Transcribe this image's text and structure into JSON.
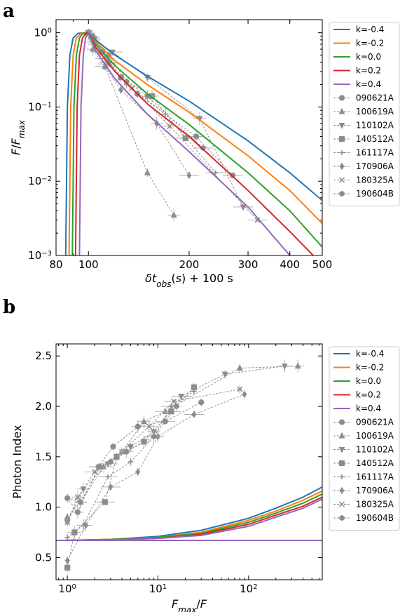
{
  "figure": {
    "panel_a_label": "a",
    "panel_b_label": "b"
  },
  "legend": {
    "models": [
      {
        "label": "k=-0.4",
        "color": "#1f77b4"
      },
      {
        "label": "k=-0.2",
        "color": "#ff7f0e"
      },
      {
        "label": "k=0.0",
        "color": "#2ca02c"
      },
      {
        "label": "k=0.2",
        "color": "#d62728"
      },
      {
        "label": "k=0.4",
        "color": "#9467bd"
      }
    ],
    "grbs": [
      {
        "label": "090621A",
        "marker": "circle"
      },
      {
        "label": "100619A",
        "marker": "triangle-up"
      },
      {
        "label": "110102A",
        "marker": "triangle-down"
      },
      {
        "label": "140512A",
        "marker": "square"
      },
      {
        "label": "161117A",
        "marker": "plus"
      },
      {
        "label": "170906A",
        "marker": "diamond"
      },
      {
        "label": "180325A",
        "marker": "x"
      },
      {
        "label": "190604B",
        "marker": "hexagon"
      }
    ]
  },
  "chart_data": [
    {
      "type": "line",
      "panel": "a",
      "xlabel": "δt_obs(s) + 100 s",
      "ylabel": "F/F_max",
      "xscale": "log",
      "yscale": "log",
      "xlim": [
        80,
        500
      ],
      "ylim": [
        0.001,
        1.5
      ],
      "xticks": [
        {
          "value": 80,
          "label": "80"
        },
        {
          "value": 100,
          "label": "100"
        },
        {
          "value": 200,
          "label": "200"
        },
        {
          "value": 300,
          "label": "300"
        },
        {
          "value": 400,
          "label": "400"
        },
        {
          "value": 500,
          "label": "500"
        }
      ],
      "yticks": [
        {
          "value": 1,
          "label": "10^0"
        },
        {
          "value": 0.1,
          "label": "10^-1"
        },
        {
          "value": 0.01,
          "label": "10^-2"
        },
        {
          "value": 0.001,
          "label": "10^-3"
        }
      ],
      "model_series": [
        {
          "name": "k=-0.4",
          "x": [
            85.5,
            86.5,
            88,
            90,
            93,
            97,
            100,
            105,
            120,
            150,
            200,
            300,
            400,
            500
          ],
          "y": [
            0.001,
            0.1,
            0.5,
            0.85,
            0.98,
            1.0,
            0.97,
            0.8,
            0.5,
            0.26,
            0.12,
            0.035,
            0.013,
            0.0055
          ]
        },
        {
          "name": "k=-0.2",
          "x": [
            87.5,
            88.5,
            90,
            92,
            95,
            98,
            100,
            105,
            120,
            150,
            200,
            300,
            400,
            500
          ],
          "y": [
            0.001,
            0.1,
            0.5,
            0.85,
            0.98,
            1.0,
            0.97,
            0.75,
            0.42,
            0.2,
            0.085,
            0.022,
            0.0075,
            0.0027
          ]
        },
        {
          "name": "k=0.0",
          "x": [
            89.5,
            90.5,
            92,
            94,
            96,
            99,
            100,
            105,
            120,
            150,
            200,
            300,
            400,
            500
          ],
          "y": [
            0.001,
            0.1,
            0.5,
            0.85,
            0.97,
            1.0,
            0.99,
            0.7,
            0.36,
            0.15,
            0.058,
            0.013,
            0.004,
            0.0013
          ]
        },
        {
          "name": "k=0.2",
          "x": [
            91.5,
            92.5,
            94,
            96,
            98,
            100,
            105,
            120,
            150,
            200,
            300,
            400,
            470
          ],
          "y": [
            0.001,
            0.1,
            0.5,
            0.85,
            0.97,
            1.0,
            0.64,
            0.3,
            0.11,
            0.04,
            0.0075,
            0.0021,
            0.001
          ]
        },
        {
          "name": "k=0.4",
          "x": [
            94,
            95,
            96.5,
            98,
            100,
            105,
            120,
            150,
            200,
            300,
            400
          ],
          "y": [
            0.001,
            0.1,
            0.5,
            0.85,
            1.0,
            0.58,
            0.24,
            0.08,
            0.025,
            0.0045,
            0.001
          ]
        }
      ],
      "data_series": [
        {
          "name": "090621A",
          "marker": "circle",
          "x": [
            100,
            104,
            115,
            140,
            210,
            270
          ],
          "y": [
            1.0,
            0.85,
            0.4,
            0.15,
            0.04,
            0.012
          ]
        },
        {
          "name": "100619A",
          "marker": "triangle-up",
          "x": [
            100,
            103,
            112,
            150,
            180
          ],
          "y": [
            1.0,
            0.6,
            0.35,
            0.013,
            0.0035
          ]
        },
        {
          "name": "110102A",
          "marker": "triangle-down",
          "x": [
            100,
            105,
            118,
            150,
            215,
            290
          ],
          "y": [
            1.0,
            0.7,
            0.55,
            0.25,
            0.07,
            0.0045
          ]
        },
        {
          "name": "140512A",
          "marker": "square",
          "x": [
            100,
            102,
            110,
            125,
            155,
            195
          ],
          "y": [
            1.0,
            0.9,
            0.55,
            0.25,
            0.14,
            0.038
          ]
        },
        {
          "name": "161117A",
          "marker": "plus",
          "x": [
            100,
            103,
            112,
            130,
            170,
            240
          ],
          "y": [
            1.0,
            0.75,
            0.45,
            0.2,
            0.08,
            0.013
          ]
        },
        {
          "name": "170906A",
          "marker": "diamond",
          "x": [
            100,
            104,
            112,
            125,
            160,
            200
          ],
          "y": [
            1.0,
            0.7,
            0.35,
            0.17,
            0.06,
            0.012
          ]
        },
        {
          "name": "180325A",
          "marker": "x",
          "x": [
            100,
            104,
            114,
            135,
            175,
            320
          ],
          "y": [
            1.0,
            0.8,
            0.38,
            0.18,
            0.055,
            0.003
          ]
        },
        {
          "name": "190604B",
          "marker": "hexagon",
          "x": [
            100,
            103,
            115,
            130,
            150,
            220
          ],
          "y": [
            1.0,
            0.9,
            0.5,
            0.22,
            0.14,
            0.028
          ]
        }
      ]
    },
    {
      "type": "line",
      "panel": "b",
      "xlabel": "F_max/F",
      "ylabel": "Photon Index",
      "xscale": "log",
      "yscale": "linear",
      "xlim": [
        0.75,
        650
      ],
      "ylim": [
        0.28,
        2.62
      ],
      "xticks": [
        {
          "value": 1,
          "label": "10^0"
        },
        {
          "value": 10,
          "label": "10^1"
        },
        {
          "value": 100,
          "label": "10^2"
        }
      ],
      "yticks": [
        {
          "value": 0.5,
          "label": "0.5"
        },
        {
          "value": 1.0,
          "label": "1.0"
        },
        {
          "value": 1.5,
          "label": "1.5"
        },
        {
          "value": 2.0,
          "label": "2.0"
        },
        {
          "value": 2.5,
          "label": "2.5"
        }
      ],
      "model_series": [
        {
          "name": "k=-0.4",
          "x": [
            0.9,
            3,
            10,
            30,
            100,
            200,
            400,
            650
          ],
          "y": [
            0.67,
            0.68,
            0.71,
            0.77,
            0.89,
            0.99,
            1.1,
            1.2
          ]
        },
        {
          "name": "k=-0.2",
          "x": [
            0.9,
            3,
            10,
            30,
            100,
            200,
            400,
            650
          ],
          "y": [
            0.67,
            0.68,
            0.7,
            0.75,
            0.87,
            0.96,
            1.07,
            1.16
          ]
        },
        {
          "name": "k=0.0",
          "x": [
            0.9,
            3,
            10,
            30,
            100,
            200,
            400,
            650
          ],
          "y": [
            0.67,
            0.68,
            0.7,
            0.74,
            0.85,
            0.94,
            1.04,
            1.13
          ]
        },
        {
          "name": "k=0.2",
          "x": [
            0.9,
            3,
            10,
            30,
            100,
            200,
            400,
            650
          ],
          "y": [
            0.67,
            0.675,
            0.69,
            0.73,
            0.83,
            0.92,
            1.01,
            1.1
          ]
        },
        {
          "name": "k=0.4",
          "x": [
            0.9,
            3,
            10,
            30,
            100,
            200,
            400,
            650
          ],
          "y": [
            0.67,
            0.675,
            0.69,
            0.72,
            0.81,
            0.9,
            0.99,
            1.08
          ]
        },
        {
          "name": "k=0.4",
          "x": [
            0.75,
            650
          ],
          "y": [
            0.67,
            0.67
          ]
        }
      ],
      "data_series": [
        {
          "name": "090621A",
          "marker": "circle",
          "x": [
            1.0,
            1.3,
            2.2,
            3.2,
            6,
            12,
            30
          ],
          "y": [
            1.09,
            0.95,
            1.4,
            1.6,
            1.8,
            1.85,
            2.04
          ]
        },
        {
          "name": "100619A",
          "marker": "triangle-up",
          "x": [
            1.0,
            1.4,
            2.5,
            4,
            7,
            12,
            80,
            350
          ],
          "y": [
            0.9,
            1.05,
            1.4,
            1.55,
            1.85,
            1.95,
            2.38,
            2.4
          ]
        },
        {
          "name": "110102A",
          "marker": "triangle-down",
          "x": [
            1.0,
            1.5,
            2.8,
            5,
            9,
            18,
            55,
            250
          ],
          "y": [
            0.85,
            1.18,
            1.43,
            1.6,
            1.75,
            2.1,
            2.32,
            2.4
          ]
        },
        {
          "name": "140512A",
          "marker": "square",
          "x": [
            1.0,
            1.2,
            2.6,
            3.5,
            7,
            14,
            25
          ],
          "y": [
            0.4,
            0.75,
            1.05,
            1.5,
            1.65,
            1.95,
            2.19
          ]
        },
        {
          "name": "161117A",
          "marker": "plus",
          "x": [
            1.0,
            1.5,
            2.8,
            5,
            9,
            14,
            25
          ],
          "y": [
            0.7,
            0.82,
            1.3,
            1.45,
            1.7,
            2.0,
            2.15
          ]
        },
        {
          "name": "170906A",
          "marker": "diamond",
          "x": [
            1.0,
            1.6,
            3.0,
            6,
            10,
            25,
            90
          ],
          "y": [
            0.47,
            0.82,
            1.2,
            1.35,
            1.7,
            1.92,
            2.12
          ]
        },
        {
          "name": "180325A",
          "marker": "x",
          "x": [
            1.0,
            1.3,
            2.0,
            4,
            8,
            15,
            80
          ],
          "y": [
            0.85,
            1.1,
            1.35,
            1.55,
            1.8,
            2.05,
            2.17
          ]
        },
        {
          "name": "190604B",
          "marker": "hexagon",
          "x": [
            1.0,
            1.4,
            2.3,
            3.0,
            4.5,
            9,
            16
          ],
          "y": [
            1.09,
            1.05,
            1.4,
            1.45,
            1.55,
            1.7,
            2.0
          ]
        }
      ]
    }
  ]
}
